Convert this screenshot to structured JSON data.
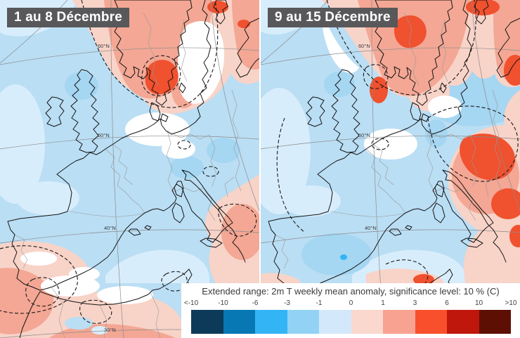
{
  "panels": [
    {
      "label": "1 au 8 Décembre"
    },
    {
      "label": "9 au 15 Décembre"
    }
  ],
  "legend": {
    "title": "Extended range: 2m T weekly mean anomaly, significance level: 10 % (C)",
    "ticks": [
      "<-10",
      "-10",
      "-6",
      "-3",
      "-1",
      "0",
      "1",
      "3",
      "6",
      "10",
      ">10"
    ],
    "colors": [
      "#0d3a58",
      "#0778b4",
      "#33b5f5",
      "#92d2f5",
      "#d3e9fb",
      "#fad8ce",
      "#f8a291",
      "#f8502c",
      "#bf170b",
      "#5e0f04"
    ]
  },
  "graticule": {
    "labels": [
      "60°N",
      "50°N",
      "40°N",
      "30°N"
    ]
  },
  "map_palette": {
    "cool_base": "#badef4",
    "cool_light": "#d8edfb",
    "cool_mid": "#a5d6f2",
    "cool_strong": "#33b5f5",
    "neutral": "#ffffff",
    "warm_light": "#f8d3c8",
    "warm": "#f3a794",
    "warm_strong": "#f0512f"
  },
  "label_chip_color": "#58585a"
}
